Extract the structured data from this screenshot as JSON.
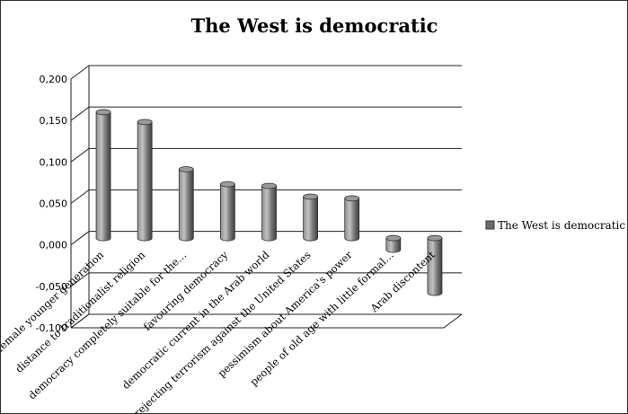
{
  "chart_data": {
    "type": "bar",
    "title": "The West is democratic",
    "categories": [
      "female younger generation",
      "distance to traditionalist religion",
      "democracy completely suitable for the…",
      "favouring democracy",
      "democratic current in the Arab world",
      "rejecting terrorism against the United States",
      "pessimism about America's power",
      "people of old age with little formal…",
      "Arab discontent"
    ],
    "series": [
      {
        "name": "The West is democratic",
        "values": [
          0.152,
          0.14,
          0.083,
          0.065,
          0.063,
          0.05,
          0.048,
          -0.014,
          -0.066
        ],
        "color": "#6b6b6b"
      }
    ],
    "y_ticks": [
      "-0,100",
      "-0,050",
      "0,000",
      "0,050",
      "0,100",
      "0,150",
      "0,200"
    ],
    "ylim": [
      -0.1,
      0.2
    ],
    "xlabel": "",
    "ylabel": "",
    "grid": true,
    "legend_position": "right"
  }
}
